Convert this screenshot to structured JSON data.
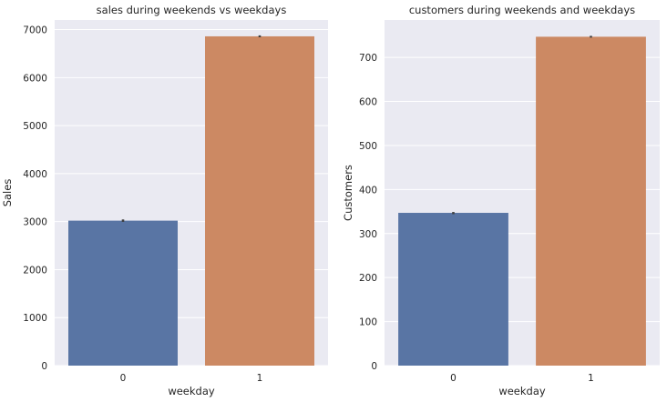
{
  "chart_data": [
    {
      "type": "bar",
      "title": "sales during weekends vs weekdays",
      "xlabel": "weekday",
      "ylabel": "Sales",
      "categories": [
        "0",
        "1"
      ],
      "values": [
        3020,
        6860
      ],
      "error_bars": [
        [
          2995,
          3045
        ],
        [
          6840,
          6880
        ]
      ],
      "yticks": [
        0,
        1000,
        2000,
        3000,
        4000,
        5000,
        6000,
        7000
      ],
      "ylim": [
        0,
        7200
      ],
      "colors": [
        "#5975a4",
        "#cc8963"
      ],
      "grid": true
    },
    {
      "type": "bar",
      "title": "customers during weekends and weekdays",
      "xlabel": "weekday",
      "ylabel": "Customers",
      "categories": [
        "0",
        "1"
      ],
      "values": [
        347,
        747
      ],
      "error_bars": [
        [
          344,
          349
        ],
        [
          745,
          749
        ]
      ],
      "yticks": [
        0,
        100,
        200,
        300,
        400,
        500,
        600,
        700
      ],
      "ylim": [
        0,
        785
      ],
      "colors": [
        "#5975a4",
        "#cc8963"
      ],
      "grid": true
    }
  ],
  "style": {
    "plot_background": "#eaeaf2",
    "grid_color": "#ffffff",
    "errorbar_color": "#3f3f3f",
    "text_color": "#262626"
  }
}
